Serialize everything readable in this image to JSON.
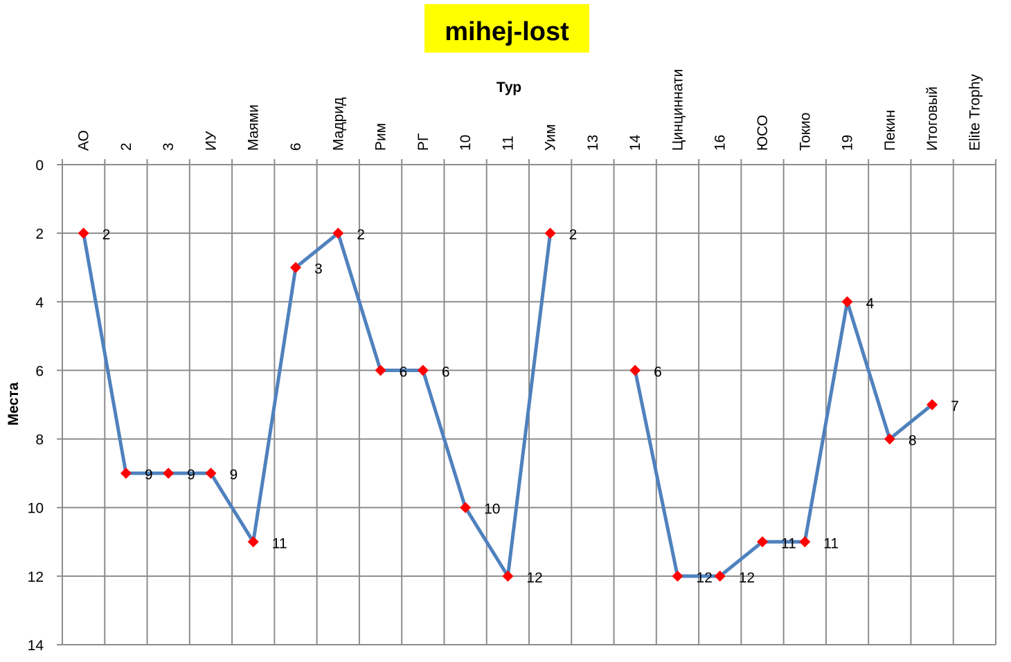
{
  "chart_data": {
    "type": "line",
    "title": "mihej-lost",
    "xlabel": "Тур",
    "ylabel": "Места",
    "categories": [
      "АО",
      "2",
      "3",
      "ИУ",
      "Маями",
      "6",
      "Мадрид",
      "Рим",
      "РГ",
      "10",
      "11",
      "Уим",
      "13",
      "14",
      "Цинциннати",
      "16",
      "ЮСО",
      "Токио",
      "19",
      "Пекин",
      "Итоговый",
      "Elite Trophy"
    ],
    "series": [
      {
        "values": [
          2,
          9,
          9,
          9,
          11,
          3,
          2,
          6,
          6,
          10,
          12,
          2,
          null,
          6,
          12,
          12,
          11,
          11,
          4,
          8,
          7,
          null
        ]
      }
    ],
    "ylim": [
      0,
      14
    ],
    "y_ticks": [
      0,
      2,
      4,
      6,
      8,
      10,
      12,
      14
    ],
    "y_reversed": true,
    "x_axis_position": "top",
    "grid": true,
    "show_data_labels": true,
    "legend": "none",
    "colors": {
      "line": "#4f81bd",
      "marker": "#ff0000",
      "title_bg": "#ffff00",
      "grid": "#8c8c8c"
    }
  }
}
